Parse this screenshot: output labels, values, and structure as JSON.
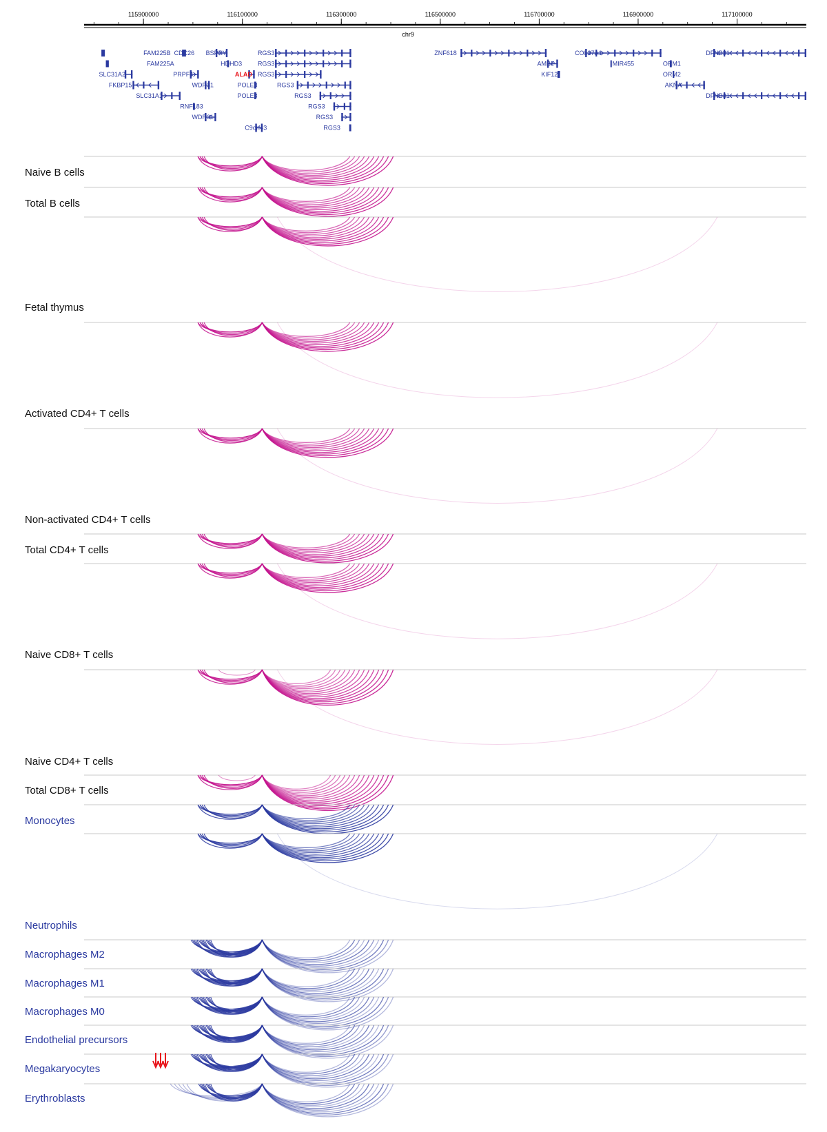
{
  "colors": {
    "gene": "#2b3aa0",
    "highlight": "#e8141b",
    "magenta": "#c4168f",
    "blue": "#2b3aa0",
    "label_black": "#111111",
    "label_blue": "#2b3aa0",
    "baseline": "#c8c8c8",
    "arrow": "#e8141b"
  },
  "axis": {
    "chromosome": "chr9",
    "range": [
      115780000,
      117240000
    ],
    "ticks": [
      115900000,
      116100000,
      116300000,
      116500000,
      116700000,
      116900000,
      117100000
    ]
  },
  "anchors": {
    "left": 116010000,
    "center": 116140000,
    "right_end": 116405000,
    "far": 117060000
  },
  "genes": [
    {
      "name": "FAM225B",
      "pos": 115900000,
      "start": 115815000,
      "end": 115822000,
      "row": 0,
      "strand": "+"
    },
    {
      "name": "FAM225A",
      "pos": 115907000,
      "start": 115824000,
      "end": 115830000,
      "row": 1,
      "strand": "+"
    },
    {
      "name": "SLC31A2",
      "pos": 115810000,
      "start": 115862000,
      "end": 115878000,
      "row": 2,
      "strand": "-"
    },
    {
      "name": "FKBP15",
      "pos": 115830000,
      "start": 115878000,
      "end": 115932000,
      "row": 3,
      "strand": "-"
    },
    {
      "name": "SLC31A1",
      "pos": 115885000,
      "start": 115935000,
      "end": 115975000,
      "row": 4,
      "strand": "+"
    },
    {
      "name": "CDC26",
      "pos": 115962000,
      "start": 115978000,
      "end": 115986000,
      "row": 0,
      "strand": "-"
    },
    {
      "name": "PRPF4",
      "pos": 115960000,
      "start": 115994000,
      "end": 116012000,
      "row": 2,
      "strand": "+"
    },
    {
      "name": "RNF183",
      "pos": 115974000,
      "start": 116000000,
      "end": 116004000,
      "row": 5,
      "strand": "-"
    },
    {
      "name": "WDR31",
      "pos": 115998000,
      "start": 116024000,
      "end": 116034000,
      "row": 3,
      "strand": "-"
    },
    {
      "name": "WDR31",
      "pos": 115998000,
      "start": 116024000,
      "end": 116047000,
      "row": 6,
      "strand": "-"
    },
    {
      "name": "BSPRY",
      "pos": 116026000,
      "start": 116046000,
      "end": 116070000,
      "row": 0,
      "strand": "+"
    },
    {
      "name": "HDHD3",
      "pos": 116056000,
      "start": 116069000,
      "end": 116073000,
      "row": 1,
      "strand": "-"
    },
    {
      "name": "ALAD",
      "pos": 116085000,
      "start": 116112000,
      "end": 116125000,
      "row": 2,
      "strand": "-",
      "highlight": true
    },
    {
      "name": "POLE3",
      "pos": 116090000,
      "start": 116124000,
      "end": 116128000,
      "row": 3,
      "strand": "-"
    },
    {
      "name": "POLE3",
      "pos": 116090000,
      "start": 116124000,
      "end": 116128000,
      "row": 4,
      "strand": "-"
    },
    {
      "name": "C9orf43",
      "pos": 116105000,
      "start": 116126000,
      "end": 116141000,
      "row": 7,
      "strand": "+"
    },
    {
      "name": "RGS3",
      "pos": 116131000,
      "start": 116166000,
      "end": 116320000,
      "row": 0,
      "strand": "+"
    },
    {
      "name": "RGS3",
      "pos": 116131000,
      "start": 116166000,
      "end": 116320000,
      "row": 1,
      "strand": "+"
    },
    {
      "name": "RGS3",
      "pos": 116131000,
      "start": 116166000,
      "end": 116260000,
      "row": 2,
      "strand": "+"
    },
    {
      "name": "RGS3",
      "pos": 116170000,
      "start": 116210000,
      "end": 116320000,
      "row": 3,
      "strand": "+"
    },
    {
      "name": "RGS3",
      "pos": 116205000,
      "start": 116256000,
      "end": 116320000,
      "row": 4,
      "strand": "+"
    },
    {
      "name": "RGS3",
      "pos": 116233000,
      "start": 116284000,
      "end": 116320000,
      "row": 5,
      "strand": "+"
    },
    {
      "name": "RGS3",
      "pos": 116249000,
      "start": 116300000,
      "end": 116320000,
      "row": 6,
      "strand": "+"
    },
    {
      "name": "RGS3",
      "pos": 116264000,
      "start": 116316000,
      "end": 116320000,
      "row": 7,
      "strand": "+"
    },
    {
      "name": "ZNF618",
      "pos": 116488000,
      "start": 116541000,
      "end": 116715000,
      "row": 0,
      "strand": "+"
    },
    {
      "name": "AMBP",
      "pos": 116696000,
      "start": 116716000,
      "end": 116738000,
      "row": 1,
      "strand": "-"
    },
    {
      "name": "KIF12",
      "pos": 116704000,
      "start": 116737000,
      "end": 116742000,
      "row": 2,
      "strand": "-"
    },
    {
      "name": "COL27A1",
      "pos": 116772000,
      "start": 116793000,
      "end": 116947000,
      "row": 0,
      "strand": "+"
    },
    {
      "name": "MIR455",
      "pos": 116848000,
      "start": 116844000,
      "end": 116845000,
      "row": 1,
      "strand": "+"
    },
    {
      "name": "ORM1",
      "pos": 116950000,
      "start": 116964000,
      "end": 116968000,
      "row": 1,
      "strand": "+"
    },
    {
      "name": "ORM2",
      "pos": 116950000,
      "start": 116970000,
      "end": 116973000,
      "row": 2,
      "strand": "+"
    },
    {
      "name": "AKNA",
      "pos": 116954000,
      "start": 116976000,
      "end": 117035000,
      "row": 3,
      "strand": "-"
    },
    {
      "name": "DFNB31",
      "pos": 117037000,
      "start": 117052000,
      "end": 117240000,
      "row": 0,
      "strand": "-"
    },
    {
      "name": "DFNB31",
      "pos": 117037000,
      "start": 117052000,
      "end": 117240000,
      "row": 4,
      "strand": "-"
    }
  ],
  "tracks": [
    {
      "label": "Naive B cells",
      "color": "magenta",
      "far_arc": false,
      "profile": "standard"
    },
    {
      "label": "Total B cells",
      "color": "magenta",
      "far_arc": false,
      "profile": "standard"
    },
    {
      "label": "Fetal thymus",
      "color": "magenta",
      "far_arc": true,
      "profile": "standard"
    },
    {
      "label": "Activated CD4+ T cells",
      "color": "magenta",
      "far_arc": true,
      "profile": "standard"
    },
    {
      "label": "Non-activated CD4+ T cells",
      "color": "magenta",
      "far_arc": true,
      "profile": "standard"
    },
    {
      "label": "Total CD4+ T cells",
      "color": "magenta",
      "far_arc": false,
      "profile": "standard"
    },
    {
      "label": "Naive CD8+ T cells",
      "color": "magenta",
      "far_arc": true,
      "profile": "standard"
    },
    {
      "label": "Naive CD4+ T cells",
      "color": "magenta",
      "far_arc": true,
      "profile": "dense"
    },
    {
      "label": "Total CD8+ T cells",
      "color": "magenta",
      "far_arc": false,
      "profile": "dense"
    },
    {
      "label": "Monocytes",
      "color": "blue",
      "far_arc": false,
      "profile": "standard"
    },
    {
      "label": "Neutrophils",
      "color": "blue",
      "far_arc": true,
      "profile": "standard"
    },
    {
      "label": "Macrophages M2",
      "color": "blue",
      "far_arc": false,
      "profile": "wide"
    },
    {
      "label": "Macrophages M1",
      "color": "blue",
      "far_arc": false,
      "profile": "wide"
    },
    {
      "label": "Macrophages M0",
      "color": "blue",
      "far_arc": false,
      "profile": "wide"
    },
    {
      "label": "Endothelial precursors",
      "color": "blue",
      "far_arc": false,
      "profile": "wide"
    },
    {
      "label": "Megakaryocytes",
      "color": "blue",
      "far_arc": false,
      "profile": "wide"
    },
    {
      "label": "Erythroblasts",
      "color": "blue",
      "far_arc": false,
      "profile": "widest",
      "marker": "arrows"
    }
  ]
}
